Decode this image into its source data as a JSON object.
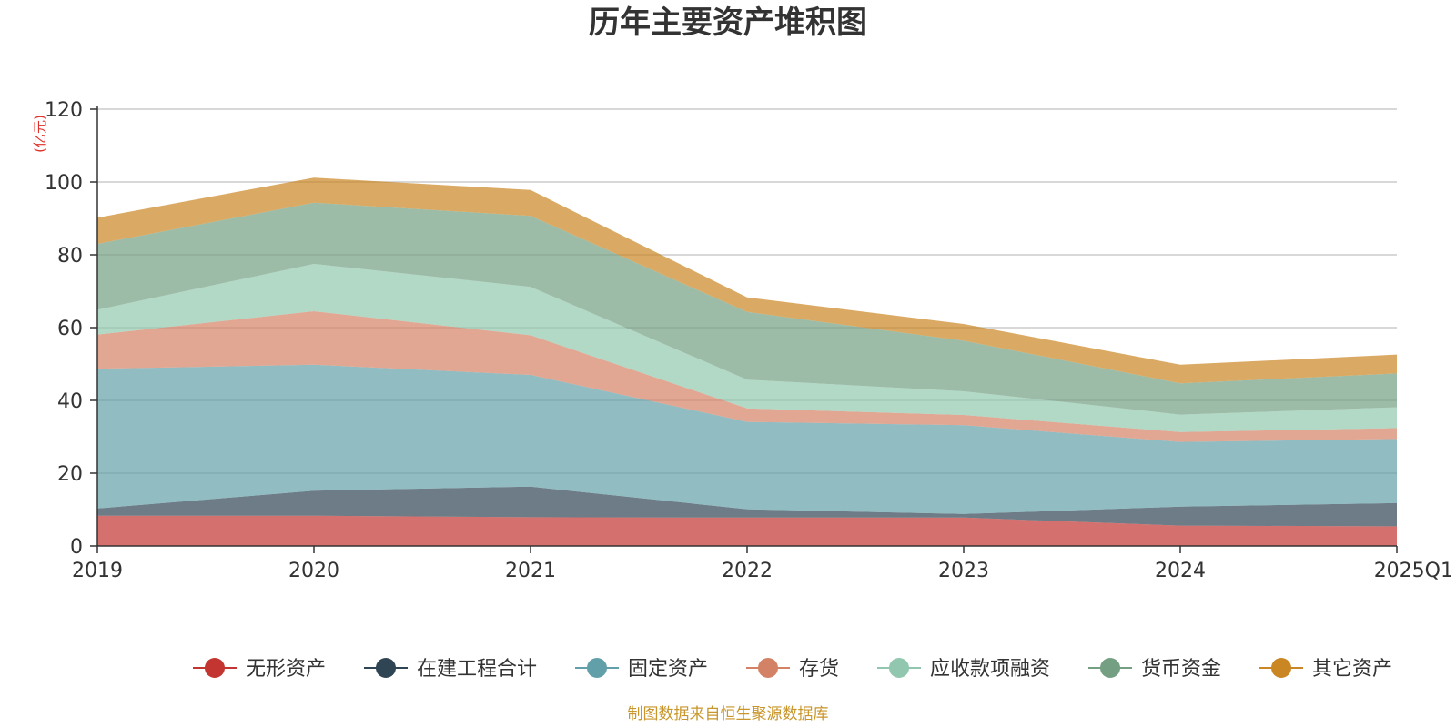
{
  "chart_data": {
    "type": "area",
    "stacked": true,
    "title": "历年主要资产堆积图",
    "unit": "(亿元)",
    "source": "制图数据来自恒生聚源数据库",
    "categories": [
      "2019",
      "2020",
      "2021",
      "2022",
      "2023",
      "2024",
      "2025Q1"
    ],
    "ylim": [
      0,
      120
    ],
    "yticks": [
      0,
      20,
      40,
      60,
      80,
      100,
      120
    ],
    "grid": true,
    "legend_position": "bottom",
    "series": [
      {
        "name": "无形资产",
        "color": "#c23531",
        "values": [
          8.3,
          8.3,
          7.9,
          7.8,
          7.8,
          5.6,
          5.4
        ]
      },
      {
        "name": "在建工程合计",
        "color": "#2f4554",
        "values": [
          2.0,
          6.9,
          8.4,
          2.3,
          1.0,
          5.2,
          6.4
        ]
      },
      {
        "name": "固定资产",
        "color": "#61a0a8",
        "values": [
          38.4,
          34.6,
          30.7,
          24.0,
          24.4,
          17.8,
          17.6
        ]
      },
      {
        "name": "存货",
        "color": "#d48265",
        "values": [
          9.4,
          14.7,
          10.9,
          3.7,
          2.8,
          2.7,
          3.0
        ]
      },
      {
        "name": "应收款项融资",
        "color": "#91c7ae",
        "values": [
          6.8,
          13.0,
          13.3,
          7.9,
          6.5,
          4.8,
          5.7
        ]
      },
      {
        "name": "货币资金",
        "color": "#749f83",
        "values": [
          18.1,
          16.8,
          19.5,
          18.6,
          13.9,
          8.6,
          9.3
        ]
      },
      {
        "name": "其它资产",
        "color": "#ca8622",
        "values": [
          7.2,
          6.9,
          7.1,
          4.0,
          4.6,
          5.1,
          5.2
        ]
      }
    ]
  }
}
